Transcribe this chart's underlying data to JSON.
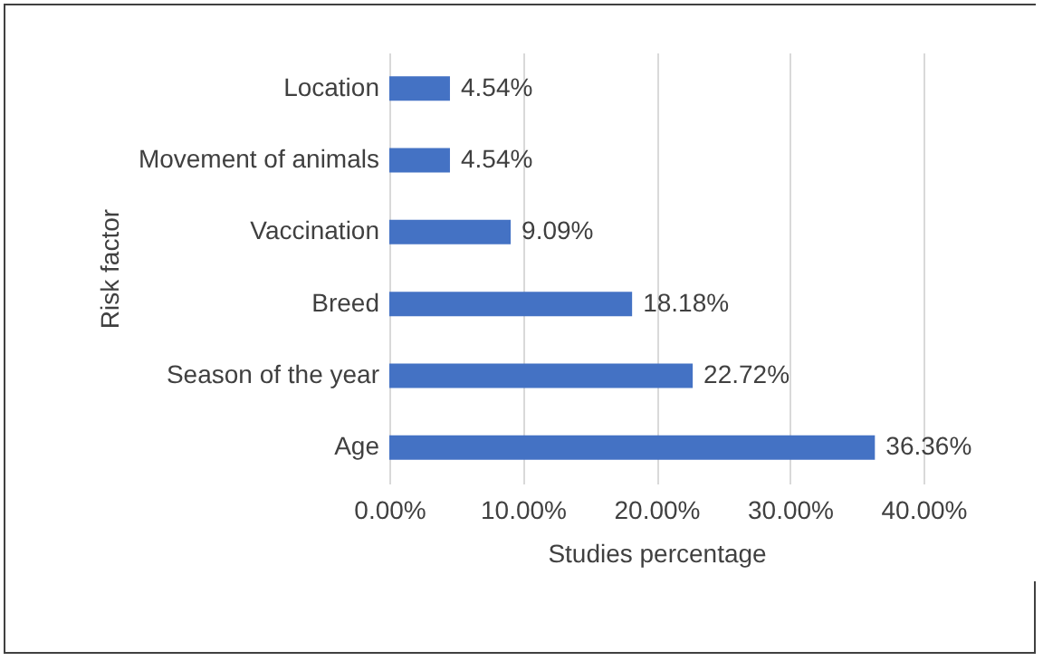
{
  "chart_data": {
    "type": "bar",
    "orientation": "horizontal",
    "xlabel": "Studies percentage",
    "ylabel": "Risk factor",
    "categories": [
      "Location",
      "Movement of animals",
      "Vaccination",
      "Breed",
      "Season of the year",
      "Age"
    ],
    "values": [
      4.54,
      4.54,
      9.09,
      18.18,
      22.72,
      36.36
    ],
    "value_labels": [
      "4.54%",
      "4.54%",
      "9.09%",
      "18.18%",
      "22.72%",
      "36.36%"
    ],
    "color": "#4472c4",
    "xlim": [
      0,
      40
    ],
    "xticks": [
      {
        "value": 0,
        "label": "0.00%"
      },
      {
        "value": 10,
        "label": "10.00%"
      },
      {
        "value": 20,
        "label": "20.00%"
      },
      {
        "value": 30,
        "label": "30.00%"
      },
      {
        "value": 40,
        "label": "40.00%"
      }
    ],
    "grid": "x"
  }
}
